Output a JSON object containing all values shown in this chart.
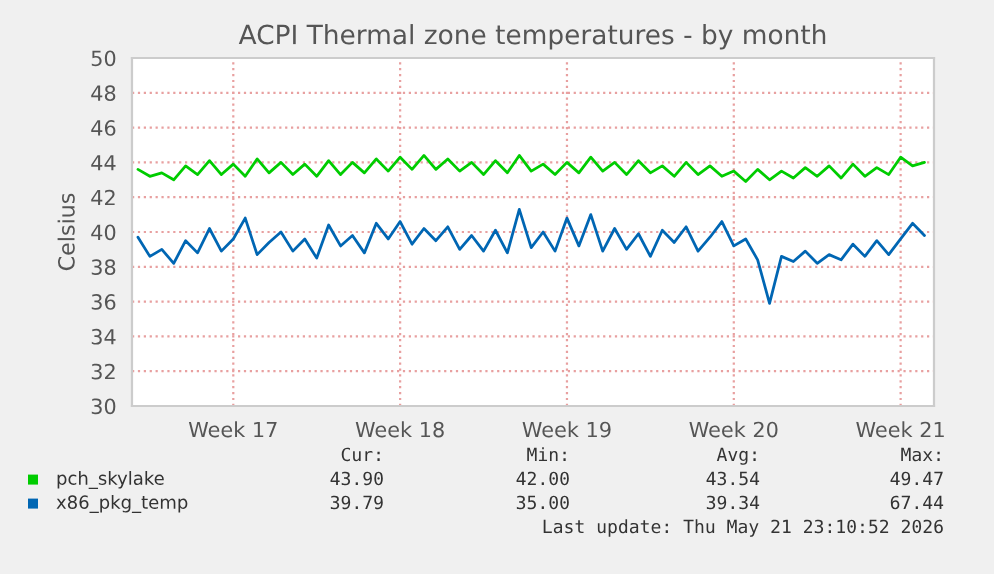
{
  "chart_data": {
    "type": "line",
    "title": "ACPI Thermal zone temperatures - by month",
    "ylabel": "Celsius",
    "categories": [
      null,
      null,
      null,
      null,
      null,
      null,
      null,
      null,
      "Week 17",
      null,
      null,
      null,
      null,
      null,
      null,
      null,
      null,
      null,
      null,
      null,
      null,
      null,
      "Week 18",
      null,
      null,
      null,
      null,
      null,
      null,
      null,
      null,
      null,
      null,
      null,
      null,
      null,
      "Week 19",
      null,
      null,
      null,
      null,
      null,
      null,
      null,
      null,
      null,
      null,
      null,
      null,
      null,
      "Week 20",
      null,
      null,
      null,
      null,
      null,
      null,
      null,
      null,
      null,
      null,
      null,
      null,
      null,
      "Week 21",
      null,
      null
    ],
    "series": [
      {
        "name": "pch_skylake",
        "color": "#00cc00",
        "values": [
          43.6,
          43.2,
          43.4,
          43.0,
          43.8,
          43.3,
          44.1,
          43.3,
          43.9,
          43.2,
          44.2,
          43.4,
          44.0,
          43.3,
          43.9,
          43.2,
          44.1,
          43.3,
          44.0,
          43.4,
          44.2,
          43.5,
          44.3,
          43.6,
          44.4,
          43.6,
          44.2,
          43.5,
          44.0,
          43.3,
          44.1,
          43.4,
          44.4,
          43.5,
          43.9,
          43.3,
          44.0,
          43.4,
          44.3,
          43.5,
          44.0,
          43.3,
          44.1,
          43.4,
          43.8,
          43.2,
          44.0,
          43.3,
          43.8,
          43.2,
          43.5,
          42.9,
          43.6,
          43.0,
          43.5,
          43.1,
          43.7,
          43.2,
          43.8,
          43.1,
          43.9,
          43.2,
          43.7,
          43.3,
          44.3,
          43.8,
          44.0
        ]
      },
      {
        "name": "x86_pkg_temp",
        "color": "#0066b3",
        "values": [
          39.7,
          38.6,
          39.0,
          38.2,
          39.5,
          38.8,
          40.2,
          38.9,
          39.6,
          40.8,
          38.7,
          39.4,
          40.0,
          38.9,
          39.6,
          38.5,
          40.4,
          39.2,
          39.8,
          38.8,
          40.5,
          39.6,
          40.6,
          39.3,
          40.2,
          39.5,
          40.3,
          39.0,
          39.8,
          38.9,
          40.1,
          38.8,
          41.3,
          39.1,
          40.0,
          38.9,
          40.8,
          39.2,
          41.0,
          38.9,
          40.2,
          39.0,
          39.9,
          38.6,
          40.1,
          39.4,
          40.3,
          38.9,
          39.7,
          40.6,
          39.2,
          39.6,
          38.4,
          35.9,
          38.6,
          38.3,
          38.9,
          38.2,
          38.7,
          38.4,
          39.3,
          38.6,
          39.5,
          38.7,
          39.6,
          40.5,
          39.8
        ]
      }
    ],
    "ylim": [
      30,
      50
    ],
    "yticks": [
      30,
      32,
      34,
      36,
      38,
      40,
      42,
      44,
      46,
      48,
      50
    ],
    "grid": true,
    "legend": "bottom",
    "line_style": "solid",
    "marker": "none",
    "annotations": [
      "Cur:",
      "Min:",
      "Avg:",
      "Max:",
      "43.90",
      "42.00",
      "43.54",
      "49.47",
      "39.79",
      "35.00",
      "39.34",
      "67.44",
      "Last update: Thu May 21 23:10:52 2026"
    ]
  }
}
